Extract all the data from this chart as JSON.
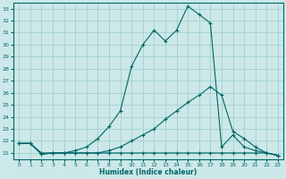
{
  "xlabel": "Humidex (Indice chaleur)",
  "bg_color": "#cce8e8",
  "line_color": "#006666",
  "grid_color": "#99cccc",
  "xlim": [
    -0.5,
    23.5
  ],
  "ylim": [
    20.5,
    33.5
  ],
  "yticks": [
    21,
    22,
    23,
    24,
    25,
    26,
    27,
    28,
    29,
    30,
    31,
    32,
    33
  ],
  "xticks": [
    0,
    1,
    2,
    3,
    4,
    5,
    6,
    7,
    8,
    9,
    10,
    11,
    12,
    13,
    14,
    15,
    16,
    17,
    18,
    19,
    20,
    21,
    22,
    23
  ],
  "line1_x": [
    0,
    1,
    2,
    3,
    4,
    5,
    6,
    7,
    8,
    9,
    10,
    11,
    12,
    13,
    14,
    15,
    16,
    17,
    18,
    19,
    20,
    21,
    22,
    23
  ],
  "line1_y": [
    21.8,
    21.8,
    20.9,
    21.0,
    21.0,
    21.0,
    21.0,
    21.0,
    21.0,
    21.0,
    21.0,
    21.0,
    21.0,
    21.0,
    21.0,
    21.0,
    21.0,
    21.0,
    21.0,
    21.0,
    21.0,
    21.0,
    21.0,
    20.8
  ],
  "line2_x": [
    0,
    1,
    2,
    3,
    4,
    5,
    6,
    7,
    8,
    9,
    10,
    11,
    12,
    13,
    14,
    15,
    16,
    17,
    18,
    19,
    20,
    21,
    22,
    23
  ],
  "line2_y": [
    21.8,
    21.8,
    21.0,
    21.0,
    21.0,
    21.0,
    21.0,
    21.0,
    21.2,
    21.5,
    22.0,
    22.5,
    23.0,
    23.8,
    24.5,
    25.2,
    25.8,
    26.5,
    25.8,
    22.8,
    22.2,
    21.5,
    21.0,
    20.8
  ],
  "line3_x": [
    0,
    1,
    2,
    3,
    4,
    5,
    6,
    7,
    8,
    9,
    10,
    11,
    12,
    13,
    14,
    15,
    16,
    17,
    18,
    19,
    20,
    21,
    22,
    23
  ],
  "line3_y": [
    21.8,
    21.8,
    20.9,
    21.0,
    21.0,
    21.2,
    21.5,
    22.2,
    23.2,
    24.5,
    28.2,
    30.0,
    31.2,
    30.3,
    31.2,
    33.2,
    32.5,
    31.8,
    21.5,
    22.5,
    21.5,
    21.2,
    21.0,
    20.8
  ]
}
